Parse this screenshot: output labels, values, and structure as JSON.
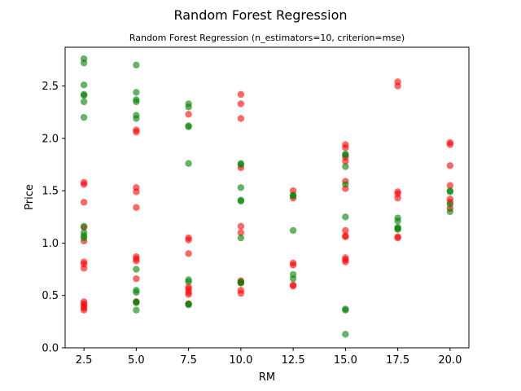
{
  "chart_data": {
    "type": "scatter",
    "title": "Random Forest Regression",
    "subtitle": "Random Forest Regression (n_estimators=10, criterion=mse)",
    "xlabel": "RM",
    "ylabel": "Price",
    "xlim": [
      1.6,
      20.9
    ],
    "ylim": [
      0.0,
      2.87
    ],
    "xticks": [
      2.5,
      5.0,
      7.5,
      10.0,
      12.5,
      15.0,
      17.5,
      20.0
    ],
    "yticks": [
      0.0,
      0.5,
      1.0,
      1.5,
      2.0,
      2.5
    ],
    "grid": false,
    "colors": {
      "red": "#ff0000",
      "green": "#008000"
    },
    "series": [
      {
        "color": "red",
        "x": [
          2.5,
          2.5,
          2.5,
          2.5,
          2.5,
          2.5,
          2.5,
          2.5,
          2.5,
          2.5,
          2.5,
          2.5,
          2.5,
          5.0,
          5.0,
          5.0,
          5.0,
          5.0,
          5.0,
          5.0,
          5.0,
          5.0,
          5.0,
          7.5,
          7.5,
          7.5,
          7.5,
          7.5,
          7.5,
          7.5,
          7.5,
          7.5,
          10.0,
          10.0,
          10.0,
          10.0,
          10.0,
          10.0,
          10.0,
          10.0,
          10.0,
          10.0,
          12.5,
          12.5,
          12.5,
          12.5,
          12.5,
          12.5,
          15.0,
          15.0,
          15.0,
          15.0,
          15.0,
          15.0,
          15.0,
          15.0,
          15.0,
          15.0,
          15.0,
          15.0,
          17.5,
          17.5,
          17.5,
          17.5,
          17.5,
          17.5,
          17.5,
          20.0,
          20.0,
          20.0,
          20.0,
          20.0,
          20.0,
          20.0
        ],
        "y": [
          1.58,
          1.56,
          1.39,
          1.15,
          1.02,
          0.82,
          0.8,
          0.76,
          0.44,
          0.42,
          0.4,
          0.38,
          0.36,
          2.08,
          2.06,
          1.53,
          1.49,
          1.34,
          0.87,
          0.85,
          0.83,
          0.66,
          0.44,
          2.23,
          1.05,
          1.03,
          0.9,
          0.58,
          0.56,
          0.53,
          0.51,
          0.42,
          2.42,
          2.33,
          2.19,
          1.72,
          1.16,
          1.1,
          0.64,
          0.62,
          0.55,
          0.52,
          1.5,
          1.43,
          0.81,
          0.79,
          0.6,
          0.59,
          1.94,
          1.91,
          1.78,
          1.59,
          1.52,
          1.12,
          1.07,
          1.06,
          0.86,
          0.84,
          0.82,
          1.82,
          2.54,
          2.5,
          1.49,
          1.47,
          1.43,
          1.06,
          1.05,
          1.96,
          1.94,
          1.74,
          1.55,
          1.42,
          1.39,
          1.33
        ]
      },
      {
        "color": "green",
        "x": [
          2.5,
          2.5,
          2.5,
          2.5,
          2.5,
          2.5,
          2.5,
          2.5,
          2.5,
          2.5,
          2.5,
          5.0,
          5.0,
          5.0,
          5.0,
          5.0,
          5.0,
          5.0,
          5.0,
          5.0,
          5.0,
          5.0,
          5.0,
          7.5,
          7.5,
          7.5,
          7.5,
          7.5,
          7.5,
          7.5,
          7.5,
          7.5,
          10.0,
          10.0,
          10.0,
          10.0,
          10.0,
          10.0,
          10.0,
          10.0,
          12.5,
          12.5,
          12.5,
          12.5,
          12.5,
          15.0,
          15.0,
          15.0,
          15.0,
          15.0,
          15.0,
          15.0,
          15.0,
          17.5,
          17.5,
          17.5,
          17.5,
          17.5,
          20.0,
          20.0,
          20.0,
          20.0
        ],
        "y": [
          2.76,
          2.72,
          2.51,
          2.42,
          2.41,
          2.35,
          2.2,
          1.16,
          1.1,
          1.07,
          1.05,
          2.7,
          2.44,
          2.37,
          2.35,
          2.22,
          2.19,
          0.75,
          0.55,
          0.53,
          0.44,
          0.43,
          0.36,
          2.33,
          2.3,
          2.12,
          2.11,
          1.76,
          0.65,
          0.63,
          0.42,
          0.41,
          1.76,
          1.75,
          1.53,
          1.41,
          1.4,
          1.05,
          0.63,
          0.62,
          1.46,
          1.45,
          1.12,
          0.7,
          0.66,
          1.85,
          1.84,
          1.73,
          1.56,
          1.25,
          0.37,
          0.36,
          0.13,
          1.24,
          1.21,
          1.15,
          1.14,
          1.13,
          1.5,
          1.49,
          1.37,
          1.3
        ]
      }
    ]
  }
}
